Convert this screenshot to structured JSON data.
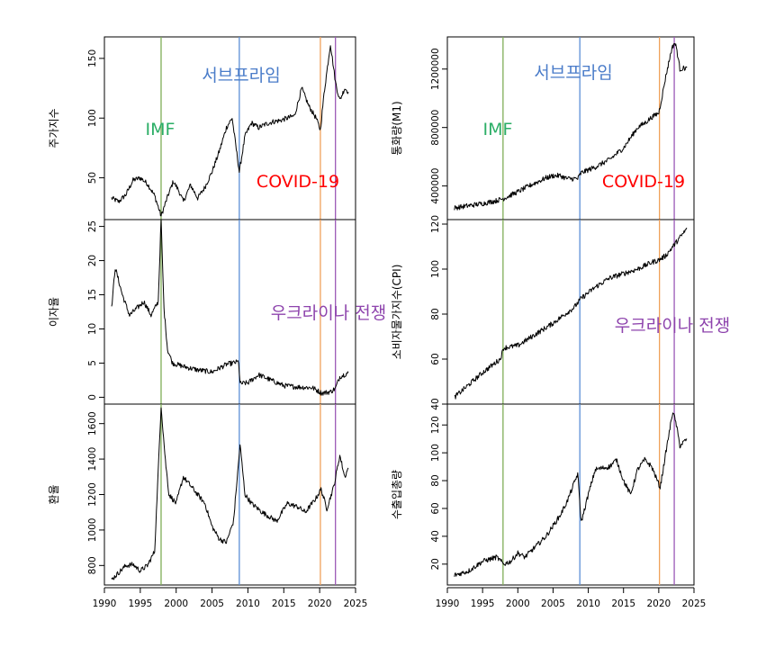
{
  "colors": {
    "imf": "#7FAE57",
    "subprime": "#5B8ED6",
    "covid": "#F0A15A",
    "ukraine": "#9B59B6",
    "imf_text": "#2BAE66",
    "subprime_text": "#4A7CC9",
    "covid_text": "#FF0000",
    "ukraine_text": "#8E44AD"
  },
  "chart_data": {
    "type": "line",
    "x_ticks": [
      1990,
      1995,
      2000,
      2005,
      2010,
      2015,
      2020,
      2025
    ],
    "xlim": [
      1990,
      2025
    ],
    "events": [
      {
        "label": "IMF",
        "year": 1997.9
      },
      {
        "label": "서브프라임",
        "year": 2008.8
      },
      {
        "label": "COVID-19",
        "year": 2020.1
      },
      {
        "label": "우크라이나 전쟁",
        "year": 2022.2
      }
    ],
    "panels": [
      {
        "column": "left",
        "ylabel": "주가지수",
        "ylim": [
          15,
          168
        ],
        "ticks": [
          50,
          100,
          150
        ],
        "points": [
          [
            1991,
            33
          ],
          [
            1992,
            30
          ],
          [
            1993,
            36
          ],
          [
            1994,
            48
          ],
          [
            1995,
            50
          ],
          [
            1996,
            45
          ],
          [
            1997,
            35
          ],
          [
            1997.9,
            18
          ],
          [
            1998.8,
            34
          ],
          [
            1999.6,
            47
          ],
          [
            2000.3,
            40
          ],
          [
            2001,
            30
          ],
          [
            2002,
            44
          ],
          [
            2003,
            33
          ],
          [
            2004,
            42
          ],
          [
            2005,
            55
          ],
          [
            2006,
            72
          ],
          [
            2007,
            92
          ],
          [
            2007.8,
            100
          ],
          [
            2008.8,
            55
          ],
          [
            2009.6,
            85
          ],
          [
            2010.5,
            96
          ],
          [
            2011.5,
            92
          ],
          [
            2012.5,
            95
          ],
          [
            2013.5,
            97
          ],
          [
            2014.5,
            98
          ],
          [
            2015.5,
            100
          ],
          [
            2016.5,
            102
          ],
          [
            2017.5,
            125
          ],
          [
            2018.5,
            110
          ],
          [
            2019.5,
            100
          ],
          [
            2020.1,
            90
          ],
          [
            2020.6,
            120
          ],
          [
            2021.5,
            162
          ],
          [
            2022.2,
            130
          ],
          [
            2022.8,
            115
          ],
          [
            2023.5,
            125
          ],
          [
            2024,
            122
          ]
        ]
      },
      {
        "column": "left",
        "ylabel": "이자율",
        "ylim": [
          -1,
          26
        ],
        "ticks": [
          0,
          5,
          10,
          15,
          20,
          25
        ],
        "points": [
          [
            1991,
            13
          ],
          [
            1991.5,
            19
          ],
          [
            1992.5,
            15
          ],
          [
            1993.5,
            12
          ],
          [
            1994.5,
            13
          ],
          [
            1995.5,
            14
          ],
          [
            1996.5,
            12
          ],
          [
            1997.5,
            14
          ],
          [
            1997.9,
            26
          ],
          [
            1998.3,
            13
          ],
          [
            1998.8,
            7
          ],
          [
            1999.5,
            5
          ],
          [
            2001,
            4.5
          ],
          [
            2003,
            4
          ],
          [
            2005,
            3.7
          ],
          [
            2007,
            4.8
          ],
          [
            2008.7,
            5.2
          ],
          [
            2008.9,
            2
          ],
          [
            2010,
            2.1
          ],
          [
            2011.5,
            3.3
          ],
          [
            2013,
            2.6
          ],
          [
            2015,
            1.7
          ],
          [
            2017,
            1.5
          ],
          [
            2019,
            1.4
          ],
          [
            2020.3,
            0.6
          ],
          [
            2021.5,
            0.8
          ],
          [
            2022.2,
            1.3
          ],
          [
            2022.8,
            3
          ],
          [
            2024,
            3.6
          ]
        ]
      },
      {
        "column": "left",
        "ylabel": "환율",
        "ylim": [
          690,
          1710
        ],
        "ticks": [
          800,
          1000,
          1200,
          1400,
          1600
        ],
        "points": [
          [
            1991,
            720
          ],
          [
            1992,
            760
          ],
          [
            1993,
            800
          ],
          [
            1994,
            805
          ],
          [
            1995,
            770
          ],
          [
            1996,
            800
          ],
          [
            1997,
            880
          ],
          [
            1997.9,
            1700
          ],
          [
            1998.5,
            1390
          ],
          [
            1999,
            1200
          ],
          [
            2000,
            1150
          ],
          [
            2001,
            1300
          ],
          [
            2002,
            1250
          ],
          [
            2003,
            1200
          ],
          [
            2004,
            1150
          ],
          [
            2005,
            1020
          ],
          [
            2006,
            950
          ],
          [
            2007,
            930
          ],
          [
            2008,
            1050
          ],
          [
            2008.9,
            1480
          ],
          [
            2009.6,
            1200
          ],
          [
            2010.5,
            1150
          ],
          [
            2012,
            1100
          ],
          [
            2014,
            1050
          ],
          [
            2015.5,
            1150
          ],
          [
            2017,
            1130
          ],
          [
            2018,
            1100
          ],
          [
            2019.5,
            1180
          ],
          [
            2020.2,
            1230
          ],
          [
            2021,
            1120
          ],
          [
            2022,
            1250
          ],
          [
            2022.8,
            1420
          ],
          [
            2023.5,
            1300
          ],
          [
            2024,
            1350
          ]
        ]
      },
      {
        "column": "right",
        "ylabel": "통화량(M1)",
        "ylim": [
          170000,
          1420000
        ],
        "ticks": [
          400000,
          800000,
          1200000
        ],
        "points": [
          [
            1991,
            250000
          ],
          [
            1993,
            265000
          ],
          [
            1995,
            280000
          ],
          [
            1997,
            300000
          ],
          [
            1998,
            315000
          ],
          [
            2000,
            360000
          ],
          [
            2002,
            410000
          ],
          [
            2004,
            455000
          ],
          [
            2005,
            470000
          ],
          [
            2006,
            470000
          ],
          [
            2007,
            450000
          ],
          [
            2008.5,
            450000
          ],
          [
            2009,
            490000
          ],
          [
            2011,
            530000
          ],
          [
            2013,
            580000
          ],
          [
            2015,
            660000
          ],
          [
            2016,
            730000
          ],
          [
            2017,
            800000
          ],
          [
            2018,
            830000
          ],
          [
            2019,
            870000
          ],
          [
            2020,
            900000
          ],
          [
            2020.5,
            1020000
          ],
          [
            2021,
            1150000
          ],
          [
            2021.8,
            1330000
          ],
          [
            2022.2,
            1380000
          ],
          [
            2022.5,
            1350000
          ],
          [
            2023,
            1200000
          ],
          [
            2024,
            1210000
          ]
        ]
      },
      {
        "column": "right",
        "ylabel": "소비자물가지수(CPI)",
        "ylim": [
          40,
          122
        ],
        "ticks": [
          40,
          60,
          80,
          100,
          120
        ],
        "points": [
          [
            1991,
            43
          ],
          [
            1995,
            54
          ],
          [
            1997.5,
            60
          ],
          [
            1998,
            65
          ],
          [
            2000,
            66
          ],
          [
            2003,
            72
          ],
          [
            2005,
            76
          ],
          [
            2008,
            83
          ],
          [
            2009,
            87
          ],
          [
            2011,
            92
          ],
          [
            2013,
            96
          ],
          [
            2015,
            98
          ],
          [
            2017,
            100
          ],
          [
            2019,
            103
          ],
          [
            2020,
            104
          ],
          [
            2021,
            106
          ],
          [
            2022,
            110
          ],
          [
            2023,
            114
          ],
          [
            2024,
            118
          ]
        ]
      },
      {
        "column": "right",
        "ylabel": "수출입총량",
        "ylim": [
          5,
          135
        ],
        "ticks": [
          20,
          40,
          60,
          80,
          100,
          120
        ],
        "points": [
          [
            1991,
            12
          ],
          [
            1993,
            15
          ],
          [
            1995,
            22
          ],
          [
            1997,
            25
          ],
          [
            1998,
            20
          ],
          [
            1999,
            22
          ],
          [
            2000,
            28
          ],
          [
            2001,
            25
          ],
          [
            2002,
            30
          ],
          [
            2004,
            40
          ],
          [
            2006,
            55
          ],
          [
            2007,
            65
          ],
          [
            2008.5,
            85
          ],
          [
            2009,
            50
          ],
          [
            2010,
            70
          ],
          [
            2011,
            88
          ],
          [
            2013,
            90
          ],
          [
            2014,
            95
          ],
          [
            2015,
            80
          ],
          [
            2016,
            70
          ],
          [
            2017,
            88
          ],
          [
            2018,
            95
          ],
          [
            2019,
            90
          ],
          [
            2020.2,
            75
          ],
          [
            2021,
            100
          ],
          [
            2022,
            130
          ],
          [
            2022.5,
            120
          ],
          [
            2023,
            105
          ],
          [
            2024,
            110
          ]
        ]
      }
    ]
  }
}
